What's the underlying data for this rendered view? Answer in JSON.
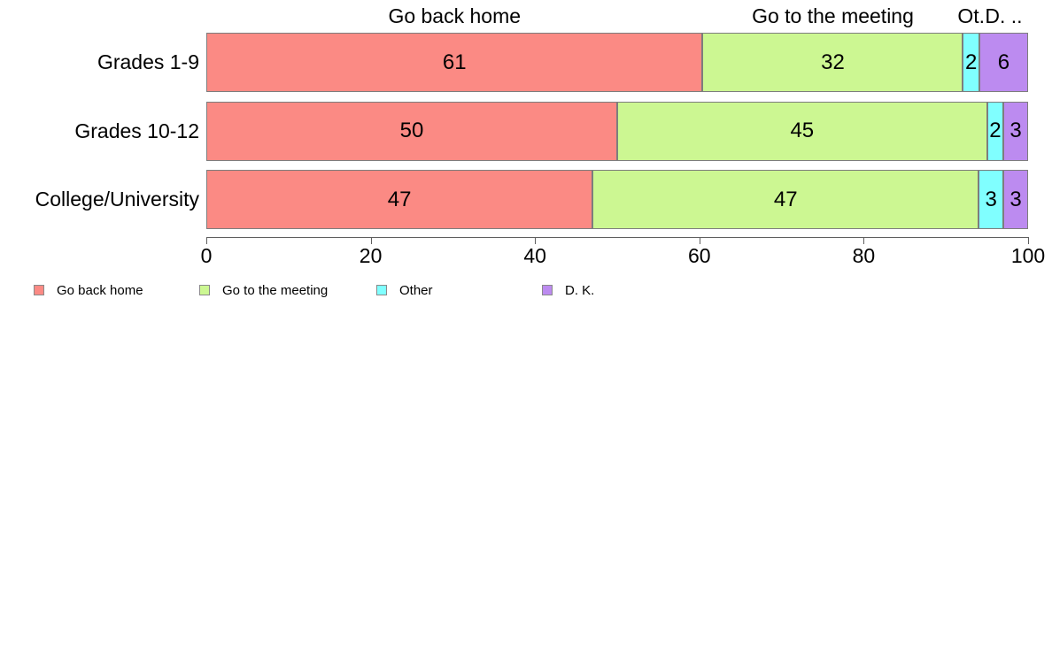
{
  "chart_data": {
    "type": "bar",
    "orientation": "horizontal",
    "stacked": true,
    "normalized_to_100": true,
    "title": "",
    "xlabel": "",
    "ylabel": "",
    "categories": [
      "Grades 1-9",
      "Grades 10-12",
      "College/University"
    ],
    "series": [
      {
        "name": "Go back home",
        "color": "#FB8A84",
        "values": [
          61,
          50,
          47
        ]
      },
      {
        "name": "Go to the meeting",
        "color": "#CCF792",
        "values": [
          32,
          45,
          47
        ]
      },
      {
        "name": "Other",
        "color": "#80FFFF",
        "values": [
          2,
          2,
          3
        ]
      },
      {
        "name": "D. K.",
        "color": "#BC8BF0",
        "values": [
          6,
          3,
          3
        ]
      }
    ],
    "column_headers": [
      "Go back home",
      "Go to the meeting",
      "Ot.",
      "D. .."
    ],
    "x_ticks": [
      "0",
      "20",
      "40",
      "60",
      "80",
      "100"
    ],
    "x_tick_values": [
      0,
      20,
      40,
      60,
      80,
      100
    ],
    "xlim": [
      0,
      100
    ],
    "grid": false,
    "legend_position": "bottom-left",
    "legend": [
      "Go back home",
      "Go to the meeting",
      "Other",
      "D. K."
    ],
    "colors": {
      "background": "#FFFFFF",
      "text": "#000000",
      "bar_border": "#7D7D7D",
      "axis": "#5F5F5F"
    }
  }
}
